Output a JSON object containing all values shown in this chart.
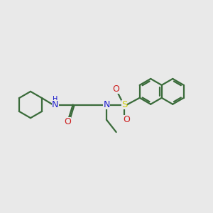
{
  "background_color": "#e9e9e9",
  "bond_color": "#3a6b3a",
  "N_color": "#1a1acc",
  "O_color": "#cc1a1a",
  "S_color": "#cccc00",
  "line_width": 1.6,
  "figsize": [
    3.0,
    3.0
  ],
  "dpi": 100,
  "xlim": [
    0,
    12
  ],
  "ylim": [
    0,
    10
  ]
}
